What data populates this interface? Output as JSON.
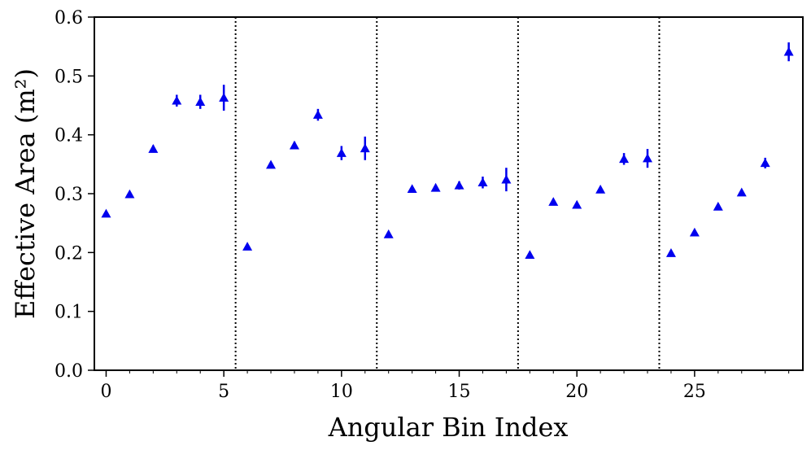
{
  "chart_data": {
    "type": "scatter",
    "xlabel": "Angular Bin Index",
    "ylabel": "Effective Area (m²)",
    "xlim": [
      -0.5,
      29.6
    ],
    "ylim": [
      0.0,
      0.6
    ],
    "xticks": [
      0,
      5,
      10,
      15,
      20,
      25
    ],
    "yticks": [
      0.0,
      0.1,
      0.2,
      0.3,
      0.4,
      0.5,
      0.6
    ],
    "xtick_labels": [
      "0",
      "5",
      "10",
      "15",
      "20",
      "25"
    ],
    "ytick_labels": [
      "0.0",
      "0.1",
      "0.2",
      "0.3",
      "0.4",
      "0.5",
      "0.6"
    ],
    "marker": "triangle-up",
    "color": "#0000ee",
    "vlines": [
      5.5,
      11.5,
      17.5,
      23.5
    ],
    "vline_style": "dotted",
    "grid": false,
    "series": [
      {
        "x": [
          0,
          1,
          2,
          3,
          4,
          5,
          6,
          7,
          8,
          9,
          10,
          11,
          12,
          13,
          14,
          15,
          16,
          17,
          18,
          19,
          20,
          21,
          22,
          23,
          24,
          25,
          26,
          27,
          28,
          29
        ],
        "y": [
          0.266,
          0.299,
          0.376,
          0.458,
          0.456,
          0.463,
          0.21,
          0.349,
          0.382,
          0.434,
          0.369,
          0.377,
          0.231,
          0.308,
          0.31,
          0.314,
          0.319,
          0.324,
          0.196,
          0.286,
          0.281,
          0.307,
          0.359,
          0.36,
          0.199,
          0.234,
          0.278,
          0.302,
          0.352,
          0.541
        ],
        "err": [
          0.004,
          0.004,
          0.006,
          0.01,
          0.012,
          0.022,
          0.004,
          0.005,
          0.006,
          0.01,
          0.012,
          0.02,
          0.004,
          0.004,
          0.004,
          0.007,
          0.01,
          0.02,
          0.004,
          0.004,
          0.004,
          0.005,
          0.01,
          0.016,
          0.004,
          0.004,
          0.004,
          0.005,
          0.009,
          0.016
        ]
      }
    ]
  }
}
